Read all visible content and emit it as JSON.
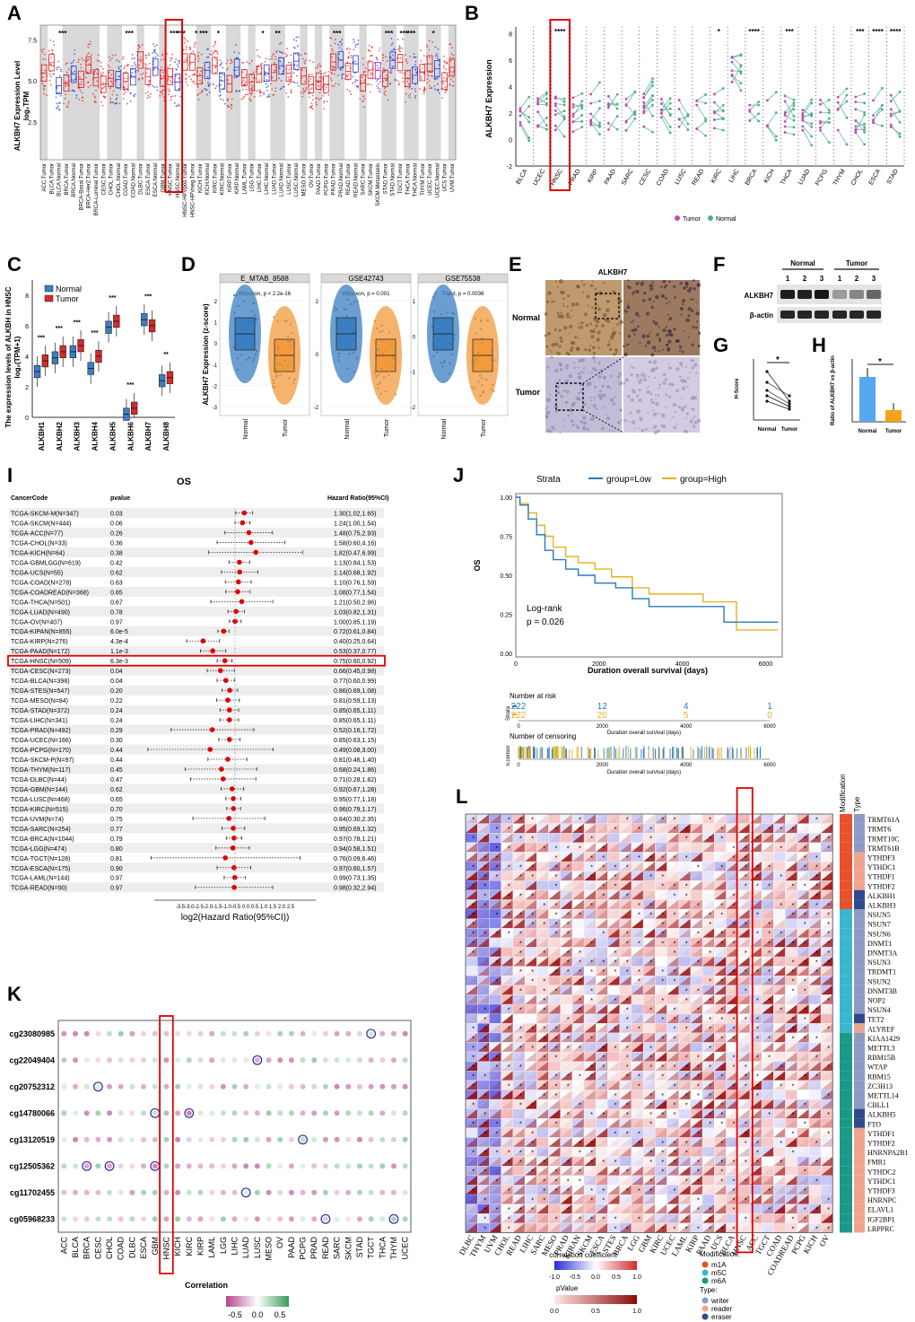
{
  "panels": {
    "A": {
      "label": "A",
      "ylabel": "ALKBH7 Expression Level",
      "ylabel2": "log₂TPM",
      "yticks": [
        "7.5",
        "5.0",
        "2.5"
      ],
      "groups": [
        "ACC.Tumor",
        "BLCA.Tumor",
        "BLCA.Normal",
        "BRCA.Tumor",
        "BRCA.Normal",
        "BRCA-Basal.Tumor",
        "BRCA-Her2.Tumor",
        "BRCA-Luminal.Tumor",
        "CESC.Tumor",
        "CHOL.Tumor",
        "CHOL.Normal",
        "COAD.Tumor",
        "COAD.Normal",
        "DLBC.Tumor",
        "ESCA.Tumor",
        "ESCA.Normal",
        "GBM.Tumor",
        "HNSC.Tumor",
        "HNSC.Normal",
        "HNSC-HPVpos.Tumor",
        "HNSC-HPVneg.Tumor",
        "KICH.Tumor",
        "KICH.Normal",
        "KIRC.Tumor",
        "KIRC.Normal",
        "KIRP.Tumor",
        "KIRP.Normal",
        "LAML.Tumor",
        "LGG.Tumor",
        "LIHC.Tumor",
        "LIHC.Normal",
        "LUAD.Tumor",
        "LUAD.Normal",
        "LUSC.Tumor",
        "LUSC.Normal",
        "MESO.Tumor",
        "OV.Tumor",
        "PAAD.Tumor",
        "PCPG.Tumor",
        "PRAD.Tumor",
        "PRAD.Normal",
        "READ.Tumor",
        "READ.Normal",
        "SARC.Tumor",
        "SKCM.Tumor",
        "SKCM.Metastasis",
        "STAD.Tumor",
        "STAD.Normal",
        "TGCT.Tumor",
        "THCA.Tumor",
        "THCA.Normal",
        "THYM.Tumor",
        "UCEC.Tumor",
        "UCEC.Normal",
        "UCS.Tumor",
        "UVM.Tumor"
      ],
      "sig": [
        "***",
        "***",
        "***",
        "***",
        "*",
        "***",
        "*",
        "*",
        "**",
        "***",
        "***",
        "***",
        "***",
        "*"
      ]
    },
    "B": {
      "label": "B",
      "ylabel": "ALKBH7 Expression",
      "yticks": [
        "8",
        "6",
        "4",
        "2",
        "0",
        "-2"
      ],
      "cats": [
        "BLCA",
        "UCEC",
        "HNSC",
        "PRAD",
        "KIRP",
        "PAAD",
        "SARC",
        "CESC",
        "COAD",
        "LUSC",
        "READ",
        "KIRC",
        "LIHC",
        "BRCA",
        "KICH",
        "THCA",
        "LUAD",
        "PCPG",
        "THYM",
        "CHOL",
        "ESCA",
        "STAD"
      ],
      "sig": [
        "****",
        "*",
        "****",
        "***",
        "***",
        "****",
        "****"
      ],
      "legend": [
        "Tumor",
        "Normal"
      ]
    },
    "C": {
      "label": "C",
      "ylabel": "The expression levels of ALKBH in HNSC",
      "ylabel2": "log₂(TPM+1)",
      "yticks": [
        "8",
        "6",
        "4",
        "2",
        "0"
      ],
      "cats": [
        "ALKBH1",
        "ALKBH2",
        "ALKBH3",
        "ALKBH4",
        "ALKBH5",
        "ALKBH6",
        "ALKBH7",
        "ALKBH8"
      ],
      "sig": [
        "***",
        "***",
        "***",
        "***",
        "***",
        "***",
        "***",
        "**"
      ],
      "legend": [
        "Normal",
        "Tumor"
      ]
    },
    "D": {
      "label": "D",
      "ylabel": "ALKBH7 Expression (z-score)",
      "sub": [
        {
          "title": "E_MTAB_8588",
          "test": "Wilcoxon, p < 2.2e-16",
          "yticks": [
            "2",
            "1",
            "0",
            "-1",
            "-2",
            "-3"
          ]
        },
        {
          "title": "GSE42743",
          "test": "Wilcoxon, p = 0.001",
          "yticks": [
            "2",
            "0",
            "-2"
          ]
        },
        {
          "title": "GSE75538",
          "test": "T-test, p = 0.0036",
          "yticks": [
            "1",
            "0",
            "-1",
            "-2"
          ]
        }
      ],
      "x": [
        "Normal",
        "Tumor"
      ]
    },
    "E": {
      "label": "E",
      "title": "ALKBH7",
      "rows": [
        "Normal",
        "Tumor"
      ]
    },
    "F": {
      "label": "F",
      "groups": [
        "Normal",
        "Tumor"
      ],
      "lanes": [
        "1",
        "2",
        "3",
        "1",
        "2",
        "3"
      ],
      "bands": [
        "ALKBH7",
        "β-actin"
      ]
    },
    "G": {
      "label": "G",
      "ylabel": "H-Score",
      "x": [
        "Normal",
        "Tumor"
      ],
      "sig": "*"
    },
    "H": {
      "label": "H",
      "ylabel": "Ratio of ALKBH7 vs β-actin",
      "x": [
        "Normal",
        "Tumor"
      ],
      "sig": "*"
    },
    "I": {
      "label": "I",
      "title": "OS",
      "headers": [
        "CancerCode",
        "pvalue",
        "Hazard Ratio(95%CI)"
      ],
      "xlabel": "log2(Hazard Ratio(95%CI))",
      "xticks": "-3.5-3.0-2.5-2.0-1.5-1.0-0.5 0.0 0.5 1.0 1.5 2.0 2.5"
    },
    "J": {
      "label": "J",
      "strata_title": "Strata",
      "low": "group=Low",
      "high": "group=High",
      "ylabel": "OS",
      "yticks": [
        "1.00",
        "0.75",
        "0.50",
        "0.25",
        "0.00"
      ],
      "xticks": [
        "0",
        "2000",
        "4000",
        "6000"
      ],
      "xlabel": "Duration overall survival (days)",
      "logrank": "Log-rank",
      "pval": "p = 0.026",
      "risk_title": "Number at risk",
      "risk_low": [
        "222",
        "12",
        "4",
        "1"
      ],
      "risk_high": [
        "222",
        "20",
        "5",
        "0"
      ],
      "strata_axis": "Strata",
      "cens_title": "Number of censoring",
      "cens_axis": "n.censor"
    },
    "K": {
      "label": "K",
      "rows": [
        "cg23080985",
        "cg22049404",
        "cg20752312",
        "cg14780066",
        "cg13120519",
        "cg12505362",
        "cg11702455",
        "cg05968233"
      ],
      "cols": [
        "ACC",
        "BLCA",
        "BRCA",
        "CESC",
        "CHOL",
        "COAD",
        "DLBC",
        "ESCA",
        "GBM",
        "HNSC",
        "KICH",
        "KIRC",
        "KIRP",
        "LAML",
        "LGG",
        "LIHC",
        "LUAD",
        "LUSC",
        "MESO",
        "OV",
        "PAAD",
        "PCPG",
        "PRAD",
        "READ",
        "SARC",
        "SKCM",
        "STAD",
        "TGCT",
        "THCA",
        "THYM",
        "UCEC"
      ],
      "legend_title": "Correlation",
      "legend_ticks": [
        "-0.5",
        "0.0",
        "0.5"
      ]
    },
    "L": {
      "label": "L",
      "col_mod": "Modification",
      "col_type": "Type",
      "genes": [
        "TRMT61A",
        "TRMT6",
        "TRMT10C",
        "TRMT61B",
        "YTHDF3",
        "YTHDC1",
        "YTHDF1",
        "YTHDF2",
        "ALKBH1",
        "ALKBH3",
        "NSUN5",
        "NSUN7",
        "NSUN6",
        "DNMT1",
        "DNMT3A",
        "NSUN3",
        "TRDMT1",
        "NSUN2",
        "DNMT3B",
        "NOP2",
        "NSUN4",
        "TET2",
        "ALYREF",
        "KIAA1429",
        "METTL3",
        "RBM15B",
        "WTAP",
        "RBM15",
        "ZC3H13",
        "METTL14",
        "CBLL1",
        "ALKBH5",
        "FTO",
        "YTHDF1",
        "YTHDF2",
        "HNRNPA2B1",
        "FMR1",
        "YTHDC2",
        "YTHDC1",
        "YTHDF3",
        "HNRNPC",
        "ELAVL1",
        "IGF2BP1",
        "LRPPRC"
      ],
      "cancers": [
        "DLBC",
        "THYM",
        "UVM",
        "CHOL",
        "READ",
        "LIHC",
        "SARC",
        "MESO",
        "PRAD",
        "KIRAN",
        "SKCM",
        "ESCA",
        "STES",
        "BRCA",
        "LGG",
        "GBM",
        "KIRC",
        "UCEC",
        "LAML",
        "KIRP",
        "PAAD",
        "UCS",
        "BLCA",
        "HNSC",
        "ACC",
        "TGCT",
        "COAD",
        "COADREAD",
        "PCPG",
        "KICH",
        "OV"
      ],
      "legend_cc": "correlation coefficient",
      "cc_ticks": [
        "-1.0",
        "-0.5",
        "0.0",
        "0.5",
        "1.0"
      ],
      "legend_p": "pValue",
      "p_ticks": [
        "0.0",
        "0.5",
        "1.0"
      ],
      "mod_title": "Modification:",
      "mods": [
        "m1A",
        "m5C",
        "m6A"
      ],
      "type_title": "Type:",
      "types": [
        "writer",
        "reader",
        "eraser"
      ]
    }
  },
  "forest": [
    {
      "code": "TCGA-SKCM-M(N=347)",
      "p": "0.03",
      "hr": "1.30(1.02,1.65)",
      "v": 0.38,
      "lo": 0.03,
      "hi": 0.72
    },
    {
      "code": "TCGA-SKCM(N=444)",
      "p": "0.06",
      "hr": "1.24(1.00,1.54)",
      "v": 0.31,
      "lo": 0.0,
      "hi": 0.62
    },
    {
      "code": "TCGA-ACC(N=77)",
      "p": "0.26",
      "hr": "1.48(0.75,2.93)",
      "v": 0.57,
      "lo": -0.42,
      "hi": 1.55
    },
    {
      "code": "TCGA-CHOL(N=33)",
      "p": "0.36",
      "hr": "1.58(0.60,4.16)",
      "v": 0.66,
      "lo": -0.74,
      "hi": 2.06
    },
    {
      "code": "TCGA-KICH(N=64)",
      "p": "0.38",
      "hr": "1.82(0.47,6.99)",
      "v": 0.86,
      "lo": -1.09,
      "hi": 2.8
    },
    {
      "code": "TCGA-GBMLGG(N=619)",
      "p": "0.42",
      "hr": "1.13(0.84,1.53)",
      "v": 0.18,
      "lo": -0.25,
      "hi": 0.61
    },
    {
      "code": "TCGA-UCS(N=55)",
      "p": "0.62",
      "hr": "1.14(0.68,1.92)",
      "v": 0.19,
      "lo": -0.56,
      "hi": 0.94
    },
    {
      "code": "TCGA-COAD(N=278)",
      "p": "0.63",
      "hr": "1.10(0.76,1.59)",
      "v": 0.14,
      "lo": -0.4,
      "hi": 0.67
    },
    {
      "code": "TCGA-COADREAD(N=368)",
      "p": "0.65",
      "hr": "1.08(0.77,1.54)",
      "v": 0.11,
      "lo": -0.38,
      "hi": 0.62
    },
    {
      "code": "TCGA-THCA(N=501)",
      "p": "0.67",
      "hr": "1.21(0.50,2.96)",
      "v": 0.28,
      "lo": -1.0,
      "hi": 1.56
    },
    {
      "code": "TCGA-LUAD(N=490)",
      "p": "0.78",
      "hr": "1.03(0.82,1.31)",
      "v": 0.04,
      "lo": -0.29,
      "hi": 0.39
    },
    {
      "code": "TCGA-OV(N=407)",
      "p": "0.97",
      "hr": "1.00(0.85,1.19)",
      "v": 0.0,
      "lo": -0.23,
      "hi": 0.25
    },
    {
      "code": "TCGA-KIPAN(N=855)",
      "p": "6.0e-5",
      "hr": "0.72(0.61,0.84)",
      "v": -0.47,
      "lo": -0.71,
      "hi": -0.25
    },
    {
      "code": "TCGA-KIRP(N=276)",
      "p": "4.3e-4",
      "hr": "0.40(0.25,0.64)",
      "v": -1.32,
      "lo": -2.0,
      "hi": -0.64
    },
    {
      "code": "TCGA-PAAD(N=172)",
      "p": "1.1e-3",
      "hr": "0.53(0.37,0.77)",
      "v": -0.92,
      "lo": -1.43,
      "hi": -0.38
    },
    {
      "code": "TCGA-HNSC(N=509)",
      "p": "6.3e-3",
      "hr": "0.75(0.60,0.92)",
      "v": -0.42,
      "lo": -0.74,
      "hi": -0.12
    },
    {
      "code": "TCGA-CESC(N=273)",
      "p": "0.04",
      "hr": "0.66(0.45,0.98)",
      "v": -0.6,
      "lo": -1.15,
      "hi": -0.03
    },
    {
      "code": "TCGA-BLCA(N=398)",
      "p": "0.04",
      "hr": "0.77(0.60,0.99)",
      "v": -0.38,
      "lo": -0.74,
      "hi": -0.01
    },
    {
      "code": "TCGA-STES(N=547)",
      "p": "0.20",
      "hr": "0.86(0.69,1.08)",
      "v": -0.22,
      "lo": -0.54,
      "hi": 0.11
    },
    {
      "code": "TCGA-MESO(N=84)",
      "p": "0.22",
      "hr": "0.81(0.59,1.13)",
      "v": -0.3,
      "lo": -0.76,
      "hi": 0.18
    },
    {
      "code": "TCGA-STAD(N=372)",
      "p": "0.24",
      "hr": "0.85(0.65,1.11)",
      "v": -0.23,
      "lo": -0.62,
      "hi": 0.15
    },
    {
      "code": "TCGA-LIHC(N=341)",
      "p": "0.24",
      "hr": "0.85(0.65,1.11)",
      "v": -0.23,
      "lo": -0.62,
      "hi": 0.15
    },
    {
      "code": "TCGA-PRAD(N=492)",
      "p": "0.29",
      "hr": "0.52(0.16,1.72)",
      "v": -0.94,
      "lo": -2.64,
      "hi": 0.78
    },
    {
      "code": "TCGA-UCEC(N=166)",
      "p": "0.30",
      "hr": "0.85(0.63,1.15)",
      "v": -0.23,
      "lo": -0.67,
      "hi": 0.2
    },
    {
      "code": "TCGA-PCPG(N=170)",
      "p": "0.44",
      "hr": "0.49(0.08,3.00)",
      "v": -1.03,
      "lo": -3.6,
      "hi": 1.58
    },
    {
      "code": "TCGA-SKCM-P(N=97)",
      "p": "0.44",
      "hr": "0.81(0.46,1.40)",
      "v": -0.3,
      "lo": -1.12,
      "hi": 0.49
    },
    {
      "code": "TCGA-THYM(N=117)",
      "p": "0.45",
      "hr": "0.68(0.24,1.86)",
      "v": -0.56,
      "lo": -2.06,
      "hi": 0.9
    },
    {
      "code": "TCGA-DLBC(N=44)",
      "p": "0.47",
      "hr": "0.71(0.28,1.82)",
      "v": -0.49,
      "lo": -1.84,
      "hi": 0.86
    },
    {
      "code": "TCGA-GBM(N=144)",
      "p": "0.62",
      "hr": "0.92(0.67,1.28)",
      "v": -0.12,
      "lo": -0.58,
      "hi": 0.36
    },
    {
      "code": "TCGA-LUSC(N=468)",
      "p": "0.65",
      "hr": "0.95(0.77,1.18)",
      "v": -0.07,
      "lo": -0.38,
      "hi": 0.24
    },
    {
      "code": "TCGA-KIRC(N=515)",
      "p": "0.70",
      "hr": "0.96(0.79,1.17)",
      "v": -0.06,
      "lo": -0.34,
      "hi": 0.23
    },
    {
      "code": "TCGA-UVM(N=74)",
      "p": "0.75",
      "hr": "0.84(0.30,2.35)",
      "v": -0.25,
      "lo": -1.74,
      "hi": 1.23
    },
    {
      "code": "TCGA-SARC(N=254)",
      "p": "0.77",
      "hr": "0.95(0.69,1.32)",
      "v": -0.07,
      "lo": -0.54,
      "hi": 0.4
    },
    {
      "code": "TCGA-BRCA(N=1044)",
      "p": "0.79",
      "hr": "0.97(0.78,1.21)",
      "v": -0.04,
      "lo": -0.36,
      "hi": 0.28
    },
    {
      "code": "TCGA-LGG(N=474)",
      "p": "0.80",
      "hr": "0.94(0.58,1.51)",
      "v": -0.09,
      "lo": -0.79,
      "hi": 0.59
    },
    {
      "code": "TCGA-TGCT(N=128)",
      "p": "0.81",
      "hr": "0.76(0.09,6.46)",
      "v": -0.4,
      "lo": -3.47,
      "hi": 2.69
    },
    {
      "code": "TCGA-ESCA(N=175)",
      "p": "0.90",
      "hr": "0.97(0.60,1.57)",
      "v": -0.04,
      "lo": -0.74,
      "hi": 0.65
    },
    {
      "code": "TCGA-LAML(N=144)",
      "p": "0.97",
      "hr": "0.99(0.73,1.35)",
      "v": -0.01,
      "lo": -0.45,
      "hi": 0.43
    },
    {
      "code": "TCGA-READ(N=90)",
      "p": "0.97",
      "hr": "0.98(0.32,2.94)",
      "v": -0.03,
      "lo": -1.64,
      "hi": 1.56
    }
  ]
}
